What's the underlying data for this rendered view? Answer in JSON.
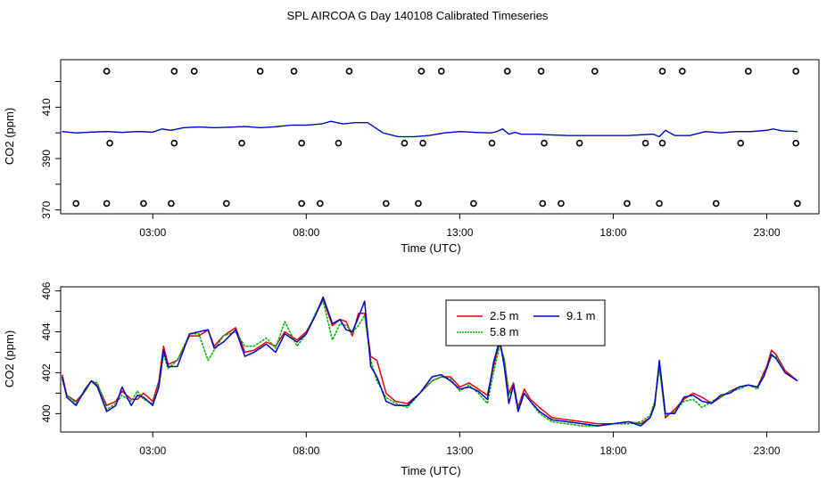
{
  "title": "SPL AIRCOA G  Day 140108  Calibrated Timeseries",
  "colors": {
    "s2_5": "#e60000",
    "s5_8": "#00b300",
    "s9_1": "#0000cc"
  },
  "chart_data": [
    {
      "type": "line",
      "xlabel": "Time (UTC)",
      "ylabel": "CO2 (ppm)",
      "xlim": [
        0.0,
        24.7
      ],
      "ylim": [
        368.5,
        428.5
      ],
      "x_ticks": [
        {
          "v": 3,
          "label": "03:00"
        },
        {
          "v": 8,
          "label": "08:00"
        },
        {
          "v": 13,
          "label": "13:00"
        },
        {
          "v": 18,
          "label": "18:00"
        },
        {
          "v": 23,
          "label": "23:00"
        }
      ],
      "y_ticks": [
        {
          "v": 370,
          "label": "370"
        },
        {
          "v": 390,
          "label": "390"
        },
        {
          "v": 410,
          "label": "410"
        }
      ],
      "y_minor_ticks": [
        380,
        400,
        420
      ],
      "line": {
        "x": [
          0.05,
          0.5,
          1,
          1.5,
          2,
          2.5,
          3,
          3.3,
          3.6,
          4,
          4.5,
          5,
          5.5,
          6,
          6.5,
          7,
          7.5,
          8,
          8.5,
          8.8,
          9.2,
          9.6,
          10,
          10.5,
          11,
          11.5,
          12,
          12.5,
          13,
          13.5,
          14,
          14.2,
          14.4,
          14.6,
          14.8,
          15,
          15.5,
          16,
          16.5,
          17,
          17.5,
          18,
          18.5,
          19,
          19.3,
          19.5,
          19.7,
          20,
          20.5,
          21,
          21.5,
          22,
          22.5,
          23,
          23.2,
          23.5,
          24
        ],
        "y": [
          400.5,
          400,
          400.3,
          400.5,
          400.2,
          400.5,
          400.3,
          401.5,
          401,
          402,
          402.3,
          402,
          402.2,
          402.5,
          402,
          402.4,
          403,
          403,
          403.5,
          404.5,
          403.5,
          404,
          404,
          400,
          398.5,
          398.5,
          399,
          400,
          400.5,
          400.2,
          400,
          400.5,
          401.5,
          399.5,
          400.2,
          399.5,
          399.5,
          399.2,
          399,
          399,
          399,
          399,
          399,
          399.3,
          399.5,
          398.5,
          401,
          399,
          399,
          400.5,
          400,
          400.5,
          400.5,
          401,
          401.5,
          400.8,
          400.5
        ]
      },
      "points": {
        "x": [
          0.5,
          1.5,
          2.7,
          3.6,
          5.4,
          7.85,
          8.45,
          10.6,
          11.65,
          13.45,
          15.7,
          16.3,
          18.45,
          19.5,
          21.35,
          24,
          1.6,
          3.7,
          5.9,
          7.85,
          9.05,
          11.2,
          11.8,
          14.05,
          15.75,
          16.9,
          19.05,
          19.6,
          22.15,
          23.95,
          1.5,
          3.7,
          4.35,
          6.5,
          7.6,
          9.4,
          11.75,
          12.4,
          14.55,
          15.65,
          17.4,
          19.6,
          20.25,
          22.4,
          23.95
        ],
        "y": [
          372.5,
          372.5,
          372.5,
          372.5,
          372.5,
          372.5,
          372.5,
          372.5,
          372.5,
          372.5,
          372.5,
          372.5,
          372.5,
          372.5,
          372.5,
          372.5,
          396,
          396,
          396,
          396,
          396,
          396,
          396,
          396,
          396,
          396,
          396,
          396,
          396,
          396,
          424,
          424,
          424,
          424,
          424,
          424,
          424,
          424,
          424,
          424,
          424,
          424,
          424,
          424,
          424
        ]
      }
    },
    {
      "type": "line",
      "xlabel": "Time (UTC)",
      "ylabel": "CO2 (ppm)",
      "xlim": [
        0.0,
        24.7
      ],
      "ylim": [
        399.1,
        406.2
      ],
      "x_ticks": [
        {
          "v": 3,
          "label": "03:00"
        },
        {
          "v": 8,
          "label": "08:00"
        },
        {
          "v": 13,
          "label": "13:00"
        },
        {
          "v": 18,
          "label": "18:00"
        },
        {
          "v": 23,
          "label": "23:00"
        }
      ],
      "y_ticks": [
        {
          "v": 400,
          "label": "400"
        },
        {
          "v": 402,
          "label": "402"
        },
        {
          "v": 404,
          "label": "404"
        },
        {
          "v": 406,
          "label": "406"
        }
      ],
      "y_minor_ticks": [
        401,
        403,
        405
      ],
      "legend": {
        "placement": "top-center"
      },
      "series": [
        {
          "name": "2.5 m",
          "color_key": "s2_5",
          "x": [
            0.05,
            0.2,
            0.5,
            0.8,
            1.0,
            1.2,
            1.5,
            1.8,
            2.0,
            2.3,
            2.5,
            2.7,
            3.0,
            3.2,
            3.35,
            3.5,
            3.8,
            4.2,
            4.5,
            4.8,
            5.0,
            5.3,
            5.7,
            6.0,
            6.3,
            6.7,
            7.0,
            7.3,
            7.7,
            8.0,
            8.3,
            8.55,
            8.85,
            9.1,
            9.3,
            9.5,
            9.7,
            9.9,
            10.1,
            10.3,
            10.6,
            10.9,
            11.3,
            11.7,
            12.1,
            12.4,
            12.7,
            13.0,
            13.3,
            13.6,
            13.9,
            14.1,
            14.3,
            14.45,
            14.6,
            14.75,
            14.9,
            15.1,
            15.3,
            15.6,
            16.0,
            16.5,
            17.0,
            17.5,
            18.0,
            18.5,
            18.9,
            19.2,
            19.35,
            19.5,
            19.7,
            20.0,
            20.3,
            20.6,
            20.9,
            21.2,
            21.5,
            21.8,
            22.1,
            22.4,
            22.7,
            22.9,
            23.0,
            23.15,
            23.3,
            23.6,
            24.0
          ],
          "y": [
            401.9,
            400.9,
            400.6,
            401.1,
            401.6,
            401.4,
            400.4,
            400.6,
            401.1,
            400.7,
            400.7,
            401.0,
            400.6,
            401.6,
            403.3,
            402.4,
            402.6,
            403.8,
            403.8,
            404.1,
            403.3,
            403.8,
            404.2,
            403.0,
            403.1,
            403.5,
            403.3,
            404.0,
            403.6,
            404.0,
            404.8,
            405.6,
            404.3,
            404.6,
            404.5,
            403.8,
            404.9,
            404.9,
            402.8,
            402.6,
            401.0,
            400.6,
            400.5,
            401.0,
            401.6,
            401.8,
            401.8,
            401.3,
            401.5,
            401.2,
            400.9,
            402.3,
            403.5,
            402.6,
            401.0,
            401.5,
            400.3,
            401.2,
            400.7,
            400.3,
            399.8,
            399.7,
            399.6,
            399.5,
            399.5,
            399.6,
            399.5,
            399.8,
            400.5,
            402.4,
            399.8,
            400.2,
            400.7,
            401.0,
            400.8,
            400.5,
            400.8,
            401.1,
            401.3,
            401.4,
            401.3,
            402.0,
            402.3,
            403.1,
            402.9,
            402.1,
            401.6
          ]
        },
        {
          "name": "5.8 m",
          "color_key": "s5_8",
          "x": [
            0.05,
            0.2,
            0.5,
            0.8,
            1.0,
            1.2,
            1.5,
            1.8,
            2.0,
            2.3,
            2.5,
            2.7,
            3.0,
            3.2,
            3.35,
            3.5,
            3.8,
            4.2,
            4.5,
            4.8,
            5.0,
            5.3,
            5.7,
            6.0,
            6.3,
            6.7,
            7.0,
            7.3,
            7.7,
            8.0,
            8.3,
            8.55,
            8.85,
            9.1,
            9.3,
            9.5,
            9.7,
            9.9,
            10.1,
            10.3,
            10.6,
            10.9,
            11.3,
            11.7,
            12.1,
            12.4,
            12.7,
            13.0,
            13.3,
            13.6,
            13.9,
            14.1,
            14.3,
            14.45,
            14.6,
            14.75,
            14.9,
            15.1,
            15.3,
            15.6,
            16.0,
            16.5,
            17.0,
            17.5,
            18.0,
            18.5,
            18.9,
            19.2,
            19.35,
            19.5,
            19.7,
            20.0,
            20.3,
            20.6,
            20.9,
            21.2,
            21.5,
            21.8,
            22.1,
            22.4,
            22.7,
            22.9,
            23.0,
            23.15,
            23.3,
            23.6,
            24.0
          ],
          "y": [
            401.7,
            400.9,
            400.5,
            401.1,
            401.6,
            401.5,
            400.2,
            400.5,
            400.9,
            400.6,
            401.1,
            400.7,
            400.5,
            401.4,
            402.9,
            402.2,
            402.6,
            403.9,
            403.9,
            402.6,
            403.1,
            403.8,
            404.0,
            403.3,
            403.3,
            403.7,
            403.2,
            404.5,
            403.3,
            403.9,
            404.9,
            405.5,
            403.6,
            404.4,
            404.3,
            404.0,
            404.3,
            404.8,
            402.6,
            401.6,
            400.8,
            400.5,
            400.3,
            401.0,
            401.6,
            401.8,
            401.7,
            401.1,
            401.4,
            401.0,
            400.5,
            402.0,
            403.3,
            402.7,
            400.9,
            401.3,
            400.2,
            401.0,
            400.6,
            400.0,
            399.6,
            399.5,
            399.4,
            399.4,
            399.5,
            399.5,
            399.6,
            399.9,
            400.6,
            402.2,
            399.9,
            400.1,
            400.6,
            400.7,
            400.3,
            400.6,
            400.8,
            401.1,
            401.2,
            401.4,
            401.2,
            401.9,
            402.2,
            402.8,
            402.8,
            402.0,
            401.6
          ]
        },
        {
          "name": "9.1 m",
          "color_key": "s9_1",
          "x": [
            0.05,
            0.2,
            0.5,
            0.8,
            1.0,
            1.2,
            1.5,
            1.8,
            2.0,
            2.3,
            2.5,
            2.7,
            3.0,
            3.2,
            3.35,
            3.5,
            3.8,
            4.2,
            4.5,
            4.8,
            5.0,
            5.3,
            5.7,
            6.0,
            6.3,
            6.7,
            7.0,
            7.3,
            7.7,
            8.0,
            8.3,
            8.55,
            8.85,
            9.1,
            9.3,
            9.5,
            9.7,
            9.9,
            10.1,
            10.3,
            10.6,
            10.9,
            11.3,
            11.7,
            12.1,
            12.4,
            12.7,
            13.0,
            13.3,
            13.6,
            13.9,
            14.1,
            14.3,
            14.45,
            14.6,
            14.75,
            14.9,
            15.1,
            15.3,
            15.6,
            16.0,
            16.5,
            17.0,
            17.5,
            18.0,
            18.5,
            18.9,
            19.2,
            19.35,
            19.5,
            19.7,
            20.0,
            20.3,
            20.6,
            20.9,
            21.2,
            21.5,
            21.8,
            22.1,
            22.4,
            22.7,
            22.9,
            23.0,
            23.15,
            23.3,
            23.6,
            24.0
          ],
          "y": [
            401.8,
            400.8,
            400.4,
            401.2,
            401.6,
            401.3,
            400.1,
            400.4,
            401.3,
            400.4,
            400.9,
            400.8,
            400.4,
            401.3,
            403.1,
            402.3,
            402.3,
            403.9,
            404.0,
            404.1,
            403.2,
            403.5,
            404.1,
            402.8,
            403.0,
            403.4,
            403.0,
            403.9,
            403.5,
            403.9,
            404.8,
            405.7,
            404.4,
            404.6,
            404.1,
            404.0,
            404.7,
            405.5,
            402.3,
            401.8,
            400.6,
            400.4,
            400.4,
            401.0,
            401.8,
            401.9,
            401.6,
            401.2,
            401.3,
            401.1,
            400.7,
            402.5,
            403.6,
            402.3,
            400.5,
            401.4,
            400.1,
            401.0,
            400.6,
            400.1,
            399.7,
            399.6,
            399.5,
            399.4,
            399.5,
            399.6,
            399.4,
            399.8,
            400.4,
            402.6,
            400.0,
            400.0,
            400.8,
            400.9,
            400.6,
            400.5,
            400.9,
            401.0,
            401.3,
            401.4,
            401.3,
            401.8,
            402.2,
            402.9,
            402.7,
            402.0,
            401.6
          ]
        }
      ]
    }
  ]
}
